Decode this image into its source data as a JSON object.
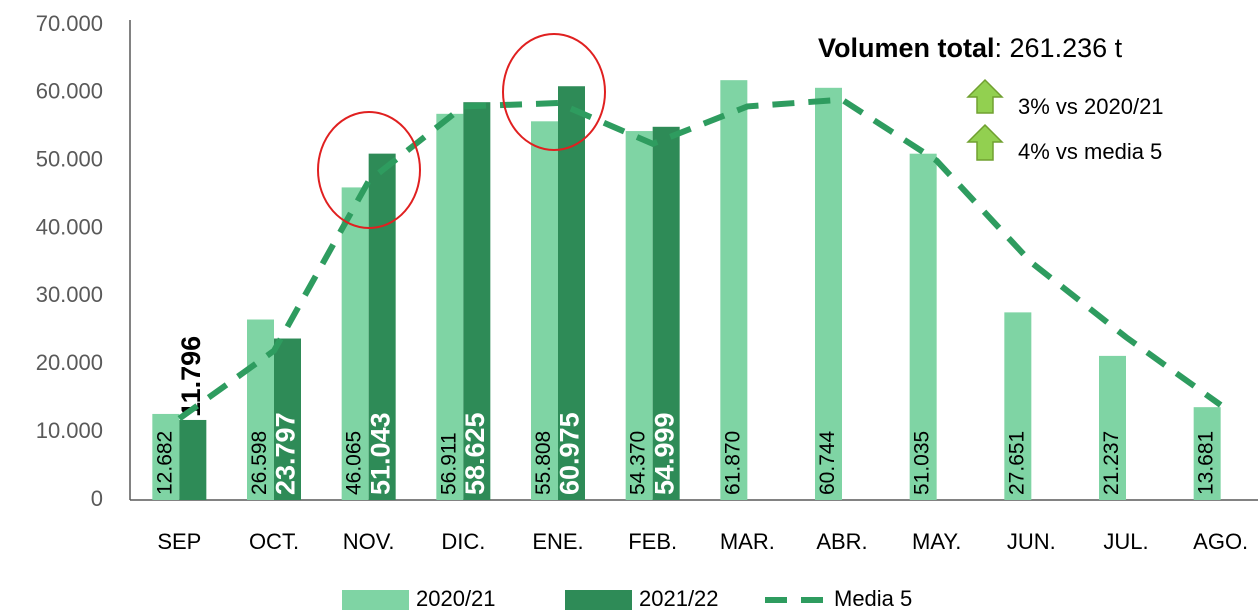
{
  "chart_data": {
    "type": "bar",
    "title": "Volumen total",
    "subtitle": ": 261.236 t",
    "annotations": [
      "3% vs 2020/21",
      "4% vs media 5"
    ],
    "categories": [
      "SEP",
      "OCT.",
      "NOV.",
      "DIC.",
      "ENE.",
      "FEB.",
      "MAR.",
      "ABR.",
      "MAY.",
      "JUN.",
      "JUL.",
      "AGO."
    ],
    "series": [
      {
        "name": "2020/21",
        "color": "#7fd4a4",
        "type": "bar",
        "values": [
          12682,
          26598,
          46065,
          56911,
          55808,
          54370,
          61870,
          60744,
          51035,
          27651,
          21237,
          13681
        ],
        "value_labels": [
          "12.682",
          "26.598",
          "46.065",
          "56.911",
          "55.808",
          "54.370",
          "61.870",
          "60.744",
          "51.035",
          "27.651",
          "21.237",
          "13.681"
        ]
      },
      {
        "name": "2021/22",
        "color": "#2e8b57",
        "type": "bar",
        "values": [
          11796,
          23797,
          51043,
          58625,
          60975,
          54999,
          null,
          null,
          null,
          null,
          null,
          null
        ],
        "value_labels": [
          "11.796",
          "23.797",
          "51.043",
          "58.625",
          "60.975",
          "54.999",
          null,
          null,
          null,
          null,
          null,
          null
        ]
      },
      {
        "name": "Media 5",
        "color": "#2e9c5f",
        "type": "line",
        "values": [
          12000,
          22000,
          47000,
          58000,
          58500,
          52500,
          58000,
          59000,
          50000,
          35000,
          24000,
          14000
        ]
      }
    ],
    "ylim": [
      0,
      70000
    ],
    "yticks": [
      0,
      {
        "value": 10000,
        "label": "10.000"
      },
      {
        "value": 20000,
        "label": "20.000"
      },
      {
        "value": 30000,
        "label": "30.000"
      },
      {
        "value": 40000,
        "label": "40.000"
      },
      {
        "value": 50000,
        "label": "50.000"
      },
      {
        "value": 60000,
        "label": "60.000"
      },
      {
        "value": 70000,
        "label": "70.000"
      }
    ],
    "grid": false,
    "legend": "bottom"
  }
}
